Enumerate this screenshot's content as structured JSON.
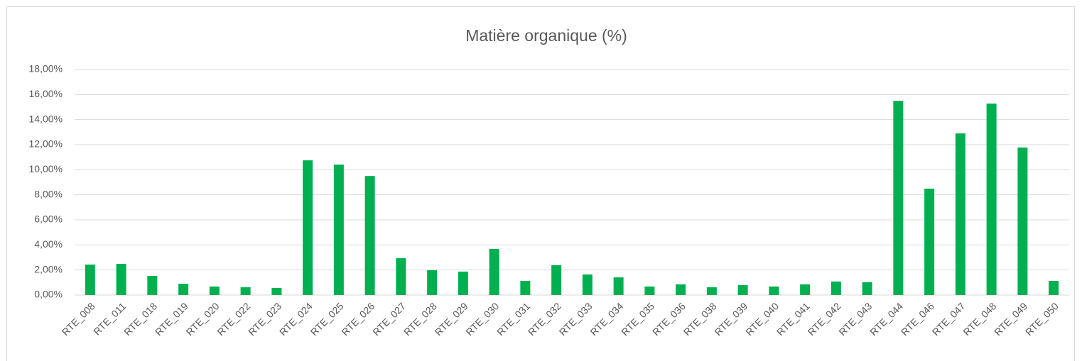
{
  "chart_data": {
    "type": "bar",
    "title": "Matière organique (%)",
    "categories": [
      "RTE_008",
      "RTE_011",
      "RTE_018",
      "RTE_019",
      "RTE_020",
      "RTE_022",
      "RTE_023",
      "RTE_024",
      "RTE_025",
      "RTE_026",
      "RTE_027",
      "RTE_028",
      "RTE_029",
      "RTE_030",
      "RTE_031",
      "RTE_032",
      "RTE_033",
      "RTE_034",
      "RTE_035",
      "RTE_036",
      "RTE_038",
      "RTE_039",
      "RTE_040",
      "RTE_041",
      "RTE_042",
      "RTE_043",
      "RTE_044",
      "RTE_046",
      "RTE_047",
      "RTE_048",
      "RTE_049",
      "RTE_050"
    ],
    "values": [
      2.43,
      2.49,
      1.53,
      0.9,
      0.68,
      0.62,
      0.57,
      10.75,
      10.41,
      9.5,
      2.94,
      1.98,
      1.87,
      3.68,
      1.13,
      2.38,
      1.64,
      1.41,
      0.68,
      0.85,
      0.62,
      0.79,
      0.68,
      0.85,
      1.08,
      1.02,
      15.5,
      8.49,
      12.9,
      15.28,
      11.77,
      1.13
    ],
    "color": "#00b050",
    "ylim": [
      0,
      18
    ],
    "yticks": [
      {
        "value": 0,
        "label": "0,00%"
      },
      {
        "value": 2,
        "label": "2,00%"
      },
      {
        "value": 4,
        "label": "4,00%"
      },
      {
        "value": 6,
        "label": "6,00%"
      },
      {
        "value": 8,
        "label": "8,00%"
      },
      {
        "value": 10,
        "label": "10,00%"
      },
      {
        "value": 12,
        "label": "12,00%"
      },
      {
        "value": 14,
        "label": "14,00%"
      },
      {
        "value": 16,
        "label": "16,00%"
      },
      {
        "value": 18,
        "label": "18,00%"
      }
    ],
    "grid": true
  }
}
